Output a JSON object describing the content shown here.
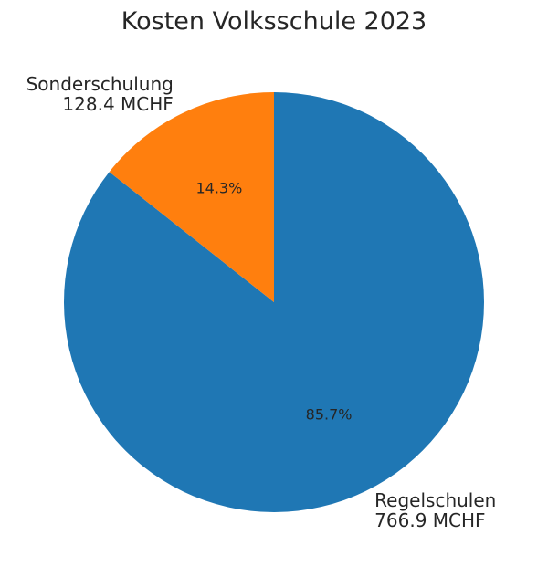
{
  "chart_data": {
    "type": "pie",
    "title": "Kosten Volksschule 2023",
    "start_angle_deg": 90,
    "direction": "clockwise",
    "slices": [
      {
        "name": "Regelschulen",
        "value": 766.9,
        "unit": "MCHF",
        "value_label": "766.9 MCHF",
        "percent_label": "85.7%",
        "color": "#1f77b4"
      },
      {
        "name": "Sonderschulung",
        "value": 128.4,
        "unit": "MCHF",
        "value_label": "128.4 MCHF",
        "percent_label": "14.3%",
        "color": "#ff7f0e"
      }
    ]
  }
}
